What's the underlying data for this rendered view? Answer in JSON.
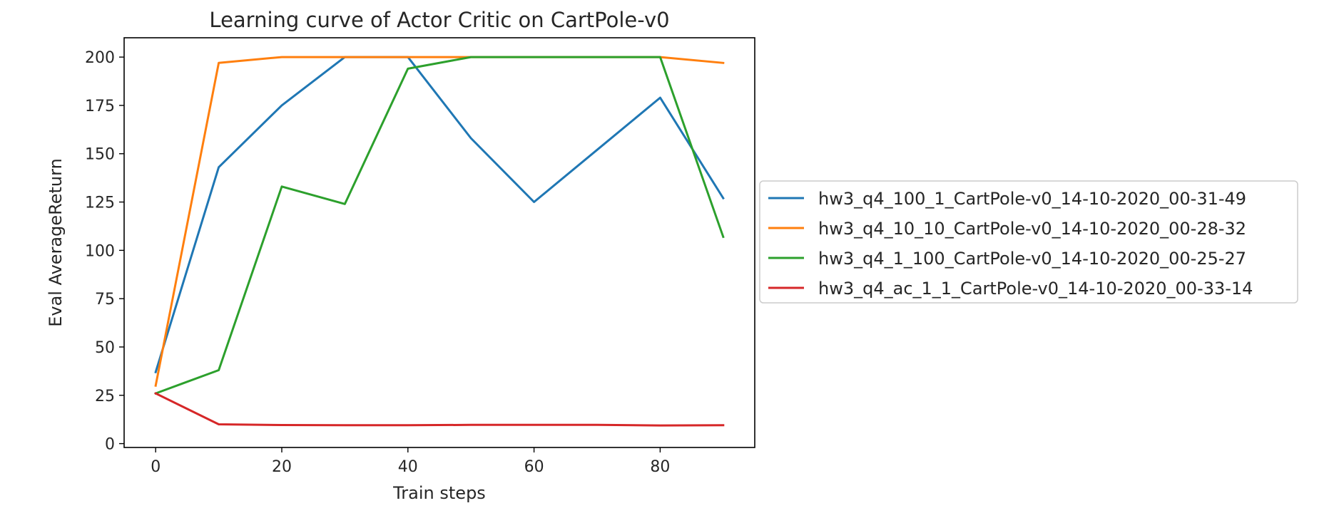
{
  "chart_data": {
    "type": "line",
    "title": "Learning curve of Actor Critic on CartPole-v0",
    "xlabel": "Train steps",
    "ylabel": "Eval AverageReturn",
    "xlim": [
      -5,
      95
    ],
    "ylim": [
      -2,
      210
    ],
    "xticks": [
      0,
      20,
      40,
      60,
      80
    ],
    "yticks": [
      0,
      25,
      50,
      75,
      100,
      125,
      150,
      175,
      200
    ],
    "grid": false,
    "legend_position": "outside-right",
    "x": [
      0,
      10,
      20,
      30,
      40,
      50,
      60,
      70,
      80,
      90
    ],
    "series": [
      {
        "name": "hw3_q4_100_1_CartPole-v0_14-10-2020_00-31-49",
        "color": "#1f77b4",
        "values": [
          37,
          143,
          175,
          200,
          200,
          158,
          125,
          152,
          179,
          127
        ]
      },
      {
        "name": "hw3_q4_10_10_CartPole-v0_14-10-2020_00-28-32",
        "color": "#ff7f0e",
        "values": [
          30,
          197,
          200,
          200,
          200,
          200,
          200,
          200,
          200,
          197
        ]
      },
      {
        "name": "hw3_q4_1_100_CartPole-v0_14-10-2020_00-25-27",
        "color": "#2ca02c",
        "values": [
          26,
          38,
          133,
          124,
          194,
          200,
          200,
          200,
          200,
          107
        ]
      },
      {
        "name": "hw3_q4_ac_1_1_CartPole-v0_14-10-2020_00-33-14",
        "color": "#d62728",
        "values": [
          26,
          10,
          9.6,
          9.5,
          9.5,
          9.7,
          9.7,
          9.7,
          9.4,
          9.5
        ]
      }
    ]
  }
}
